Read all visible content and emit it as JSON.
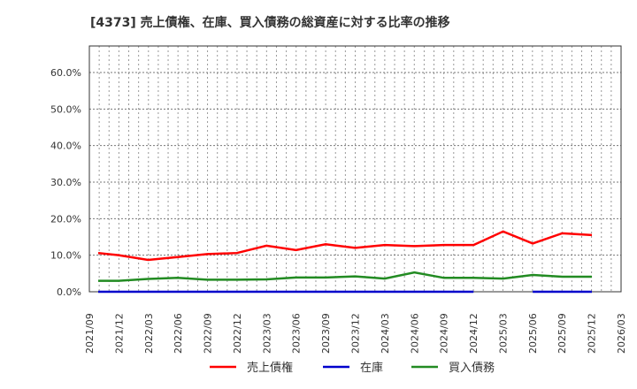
{
  "chart_data": {
    "type": "line",
    "title": "[4373]  売上債権、在庫、買入債務の総資産に対する比率の推移",
    "xlabel": "",
    "ylabel": "",
    "ylim": [
      0,
      67
    ],
    "yticks": [
      "0.0%",
      "10.0%",
      "20.0%",
      "30.0%",
      "40.0%",
      "50.0%",
      "60.0%"
    ],
    "xticks": [
      "2021/09",
      "2021/12",
      "2022/03",
      "2022/06",
      "2022/09",
      "2022/12",
      "2023/03",
      "2023/06",
      "2023/09",
      "2023/12",
      "2024/03",
      "2024/06",
      "2024/09",
      "2024/12",
      "2025/03",
      "2025/06",
      "2025/09",
      "2025/12",
      "2026/03"
    ],
    "grid": true,
    "legend_position": "bottom",
    "x": [
      "2021/10",
      "2021/12",
      "2022/03",
      "2022/06",
      "2022/09",
      "2022/12",
      "2023/03",
      "2023/06",
      "2023/09",
      "2023/12",
      "2024/03",
      "2024/06",
      "2024/09",
      "2024/12",
      "2025/03",
      "2025/06",
      "2025/09",
      "2025/12"
    ],
    "series": [
      {
        "name": "売上債権",
        "color": "#ff0000",
        "values": [
          10.6,
          10.0,
          8.7,
          9.5,
          10.3,
          10.6,
          12.6,
          11.4,
          13.0,
          12.0,
          12.8,
          12.5,
          12.8,
          12.8,
          16.5,
          13.2,
          16.0,
          15.5
        ]
      },
      {
        "name": "在庫",
        "color": "#0000cc",
        "values": [
          0,
          0,
          0,
          0,
          0,
          0,
          0,
          0,
          0,
          0,
          0,
          0,
          0,
          0,
          null,
          0,
          0,
          0
        ]
      },
      {
        "name": "買入債務",
        "color": "#228b22",
        "values": [
          3.0,
          3.0,
          3.5,
          3.8,
          3.3,
          3.3,
          3.4,
          3.9,
          3.9,
          4.2,
          3.6,
          5.3,
          3.8,
          3.8,
          3.6,
          4.6,
          4.1,
          4.1
        ]
      }
    ]
  }
}
